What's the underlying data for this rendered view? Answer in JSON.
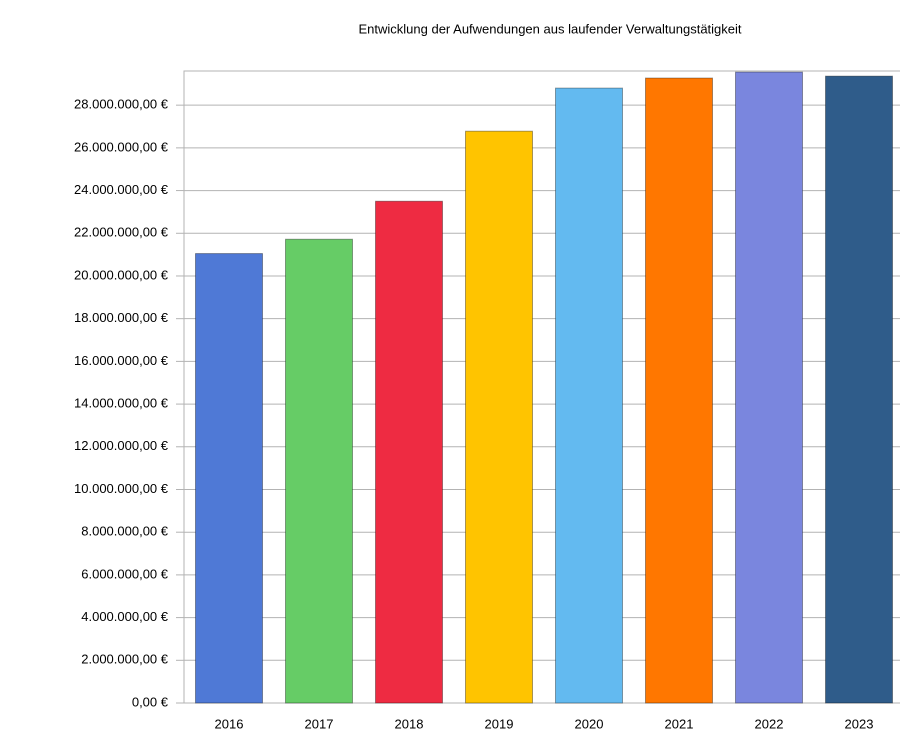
{
  "chart_data": {
    "type": "bar",
    "title": "Entwicklung der Aufwendungen aus laufender Verwaltungstätigkeit",
    "categories": [
      "2016",
      "2017",
      "2018",
      "2019",
      "2020",
      "2021",
      "2022",
      "2023"
    ],
    "values": [
      21050000,
      21720000,
      23500000,
      26780000,
      28800000,
      29270000,
      29550000,
      29360000
    ],
    "colors": [
      "#4f79d6",
      "#66cc66",
      "#ee2b42",
      "#ffc400",
      "#63baf0",
      "#ff7700",
      "#7a86de",
      "#2f5c8a"
    ],
    "ylim": [
      0,
      29600000
    ],
    "yticks": [
      {
        "value": 0,
        "label": "0,00 €"
      },
      {
        "value": 2000000,
        "label": "2.000.000,00 €"
      },
      {
        "value": 4000000,
        "label": "4.000.000,00 €"
      },
      {
        "value": 6000000,
        "label": "6.000.000,00 €"
      },
      {
        "value": 8000000,
        "label": "8.000.000,00 €"
      },
      {
        "value": 10000000,
        "label": "10.000.000,00 €"
      },
      {
        "value": 12000000,
        "label": "12.000.000,00 €"
      },
      {
        "value": 14000000,
        "label": "14.000.000,00 €"
      },
      {
        "value": 16000000,
        "label": "16.000.000,00 €"
      },
      {
        "value": 18000000,
        "label": "18.000.000,00 €"
      },
      {
        "value": 20000000,
        "label": "20.000.000,00 €"
      },
      {
        "value": 22000000,
        "label": "22.000.000,00 €"
      },
      {
        "value": 24000000,
        "label": "24.000.000,00 €"
      },
      {
        "value": 26000000,
        "label": "26.000.000,00 €"
      },
      {
        "value": 28000000,
        "label": "28.000.000,00 €"
      }
    ],
    "grid": true
  }
}
